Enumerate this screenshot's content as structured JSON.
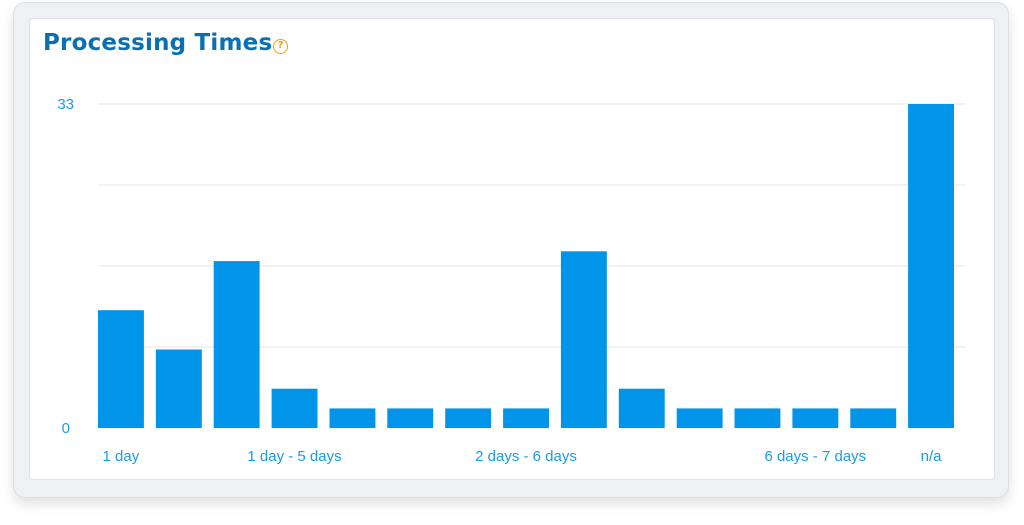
{
  "header": {
    "title": "Processing Times",
    "help_icon_glyph": "?"
  },
  "icons": {
    "help": "question-circle-icon"
  },
  "colors": {
    "bar": "#0095e8",
    "title": "#0b6fb3",
    "accent": "#f39c12",
    "axis_text": "#1a9be6",
    "grid": "#e3e6ea"
  },
  "chart_data": {
    "type": "bar",
    "title": "Processing Times",
    "xlabel": "",
    "ylabel": "",
    "ylim": [
      0,
      33
    ],
    "y_ticks": [
      "0",
      "33"
    ],
    "gridlines": 4,
    "grid": true,
    "legend": "none",
    "categories": [
      "1 day",
      "",
      "",
      "1 day - 5 days",
      "",
      "",
      "",
      "2 days - 6 days",
      "",
      "",
      "",
      "",
      "6 days - 7 days",
      "",
      "n/a"
    ],
    "values": [
      12,
      8,
      17,
      4,
      2,
      2,
      2,
      2,
      18,
      4,
      2,
      2,
      2,
      2,
      33
    ]
  }
}
